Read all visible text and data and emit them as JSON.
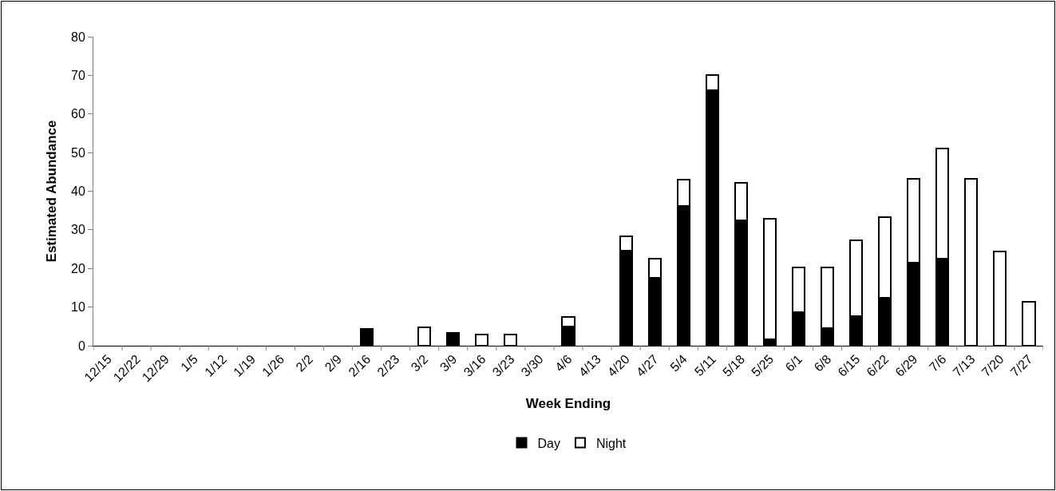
{
  "chart_data": {
    "type": "bar",
    "stacked": true,
    "xlabel": "Week Ending",
    "ylabel": "Estimated Abundance",
    "categories": [
      "12/15",
      "12/22",
      "12/29",
      "1/5",
      "1/12",
      "1/19",
      "1/26",
      "2/2",
      "2/9",
      "2/16",
      "2/23",
      "3/2",
      "3/9",
      "3/16",
      "3/23",
      "3/30",
      "4/6",
      "4/13",
      "4/20",
      "4/27",
      "5/4",
      "5/11",
      "5/18",
      "5/25",
      "6/1",
      "6/8",
      "6/15",
      "6/22",
      "6/29",
      "7/6",
      "7/13",
      "7/20",
      "7/27"
    ],
    "series": [
      {
        "name": "Day",
        "color": "#000000",
        "values": [
          null,
          null,
          null,
          null,
          null,
          null,
          null,
          null,
          null,
          4.3,
          null,
          null,
          3.3,
          null,
          null,
          null,
          4.9,
          null,
          24.6,
          17.6,
          36.2,
          66.2,
          32.4,
          1.6,
          8.7,
          4.6,
          7.6,
          12.5,
          21.5,
          22.5,
          null,
          null,
          null
        ]
      },
      {
        "name": "Night",
        "color": "#ffffff",
        "values": [
          null,
          null,
          null,
          null,
          null,
          null,
          null,
          null,
          null,
          null,
          null,
          4.8,
          null,
          2.8,
          2.8,
          null,
          2.5,
          null,
          3.8,
          4.9,
          6.9,
          3.8,
          9.7,
          31.3,
          11.5,
          15.7,
          19.7,
          20.7,
          21.7,
          28.5,
          43.2,
          24.3,
          11.4
        ]
      }
    ],
    "ylim": [
      0,
      80
    ],
    "yticks": [
      0,
      10,
      20,
      30,
      40,
      50,
      60,
      70,
      80
    ],
    "grid": false,
    "legend": "bottom"
  }
}
